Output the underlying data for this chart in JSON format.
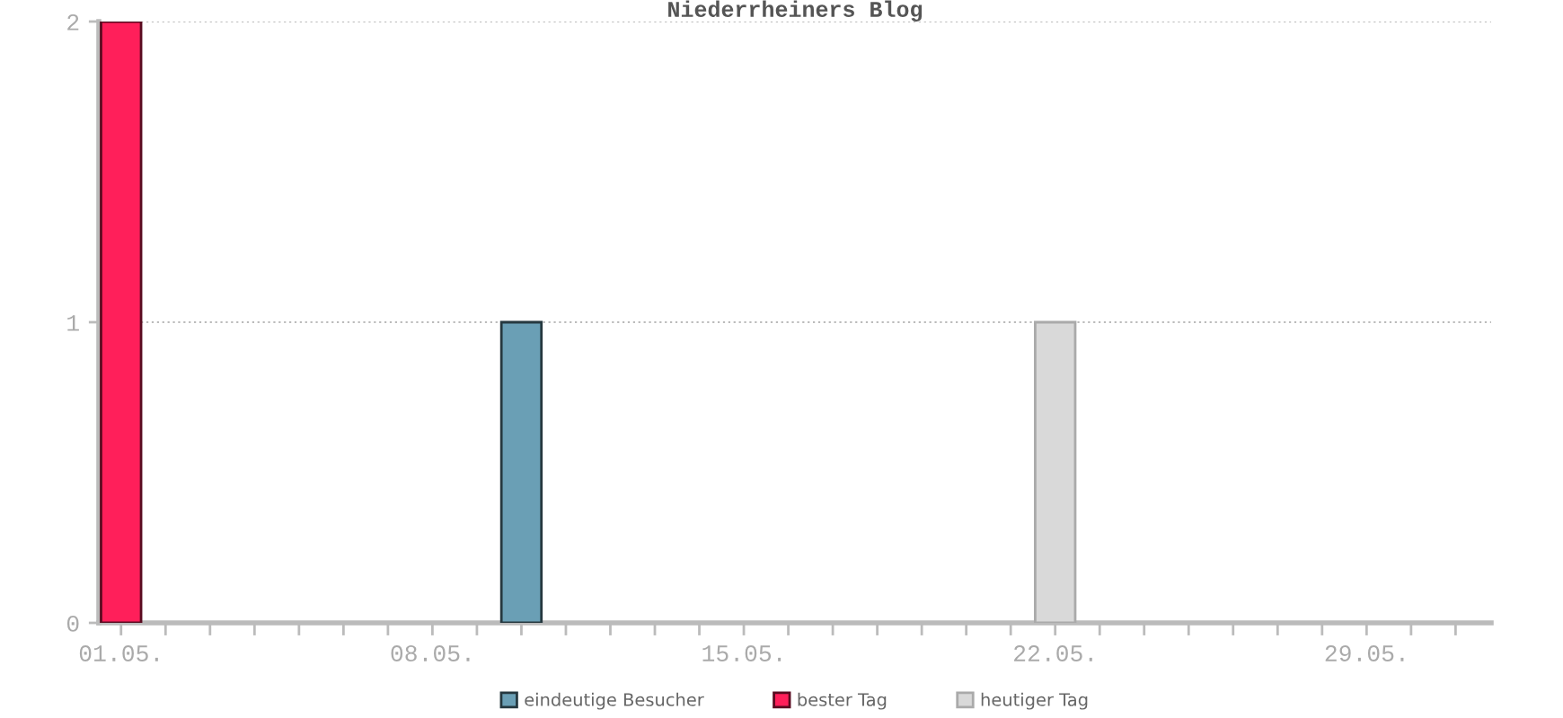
{
  "chart_data": {
    "type": "bar",
    "title": "Niederrheiners Blog",
    "categories": [
      "01.05.",
      null,
      null,
      null,
      null,
      null,
      null,
      "08.05.",
      null,
      null,
      null,
      null,
      null,
      null,
      "15.05.",
      null,
      null,
      null,
      null,
      null,
      null,
      "22.05.",
      null,
      null,
      null,
      null,
      null,
      null,
      "29.05.",
      null,
      null
    ],
    "series": [
      {
        "name": "eindeutige Besucher",
        "color": "#6a9fb5",
        "values": [
          null,
          null,
          null,
          null,
          null,
          null,
          null,
          null,
          null,
          1,
          null,
          null,
          null,
          null,
          null,
          null,
          null,
          null,
          null,
          null,
          null,
          null,
          null,
          null,
          null,
          null,
          null,
          null,
          null,
          null,
          null
        ]
      },
      {
        "name": "bester Tag",
        "color": "#ff1f5a",
        "values": [
          2,
          null,
          null,
          null,
          null,
          null,
          null,
          null,
          null,
          null,
          null,
          null,
          null,
          null,
          null,
          null,
          null,
          null,
          null,
          null,
          null,
          null,
          null,
          null,
          null,
          null,
          null,
          null,
          null,
          null,
          null
        ]
      },
      {
        "name": "heutiger Tag",
        "color": "#d9d9d9",
        "values": [
          null,
          null,
          null,
          null,
          null,
          null,
          null,
          null,
          null,
          null,
          null,
          null,
          null,
          null,
          null,
          null,
          null,
          null,
          null,
          null,
          null,
          1,
          null,
          null,
          null,
          null,
          null,
          null,
          null,
          null,
          null
        ]
      }
    ],
    "ylim": [
      0,
      2
    ],
    "yticks": [
      0,
      1,
      2
    ],
    "grid": "y",
    "legend": "bottom"
  }
}
